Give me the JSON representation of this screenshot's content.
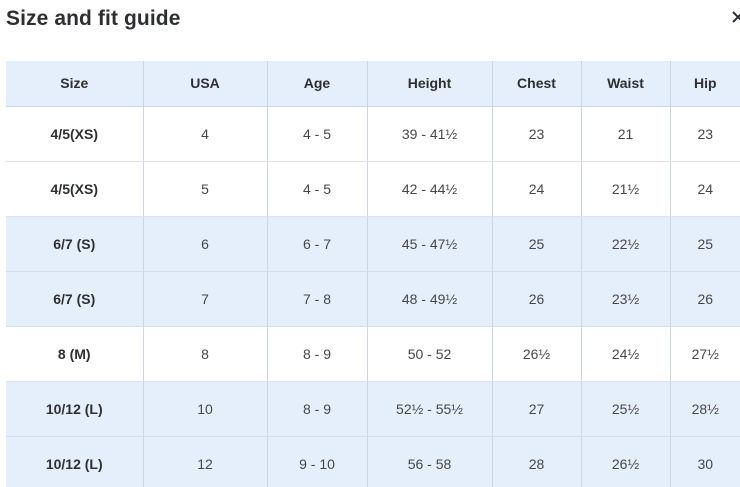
{
  "dialog": {
    "title": "Size and fit guide",
    "close_icon": "close-icon"
  },
  "colors": {
    "header_bg": "#e5effb",
    "shaded_row_bg": "#e5effb",
    "text": "#2e2f32",
    "divider": "#c9d6e6"
  },
  "table": {
    "headers": [
      "Size",
      "USA",
      "Age",
      "Height",
      "Chest",
      "Waist",
      "Hip"
    ],
    "rows": [
      {
        "shaded": false,
        "cells": [
          "4/5(XS)",
          "4",
          "4 - 5",
          "39 - 41½",
          "23",
          "21",
          "23"
        ]
      },
      {
        "shaded": false,
        "cells": [
          "4/5(XS)",
          "5",
          "4 - 5",
          "42 - 44½",
          "24",
          "21½",
          "24"
        ]
      },
      {
        "shaded": true,
        "cells": [
          "6/7 (S)",
          "6",
          "6 - 7",
          "45 - 47½",
          "25",
          "22½",
          "25"
        ]
      },
      {
        "shaded": true,
        "cells": [
          "6/7 (S)",
          "7",
          "7 - 8",
          "48 - 49½",
          "26",
          "23½",
          "26"
        ]
      },
      {
        "shaded": false,
        "cells": [
          "8 (M)",
          "8",
          "8 - 9",
          "50 - 52",
          "26½",
          "24½",
          "27½"
        ]
      },
      {
        "shaded": true,
        "cells": [
          "10/12 (L)",
          "10",
          "8 - 9",
          "52½ - 55½",
          "27",
          "25½",
          "28½"
        ]
      },
      {
        "shaded": true,
        "cells": [
          "10/12 (L)",
          "12",
          "9 - 10",
          "56 - 58",
          "28",
          "26½",
          "30"
        ]
      }
    ]
  }
}
